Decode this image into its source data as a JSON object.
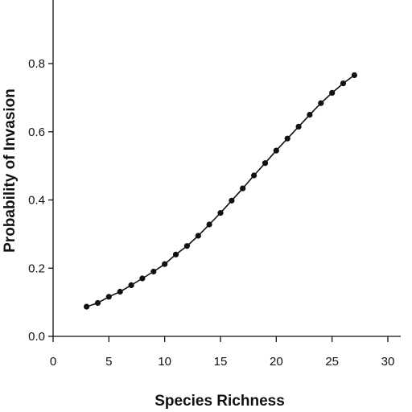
{
  "chart_data": {
    "type": "line",
    "title": "",
    "xlabel": "Species Richness",
    "ylabel": "Probability of Invasion",
    "xlim": [
      0,
      30
    ],
    "ylim": [
      0,
      0.8
    ],
    "xticks": [
      0,
      5,
      10,
      15,
      20,
      25,
      30
    ],
    "yticks": [
      0.0,
      0.2,
      0.4,
      0.6,
      0.8
    ],
    "xtick_labels": [
      "0",
      "5",
      "10",
      "15",
      "20",
      "25",
      "30"
    ],
    "ytick_labels": [
      "0.0",
      "0.2",
      "0.4",
      "0.6",
      "0.8"
    ],
    "grid": false,
    "legend": "none",
    "series": [
      {
        "color": "#111111",
        "x": [
          3,
          4,
          5,
          6,
          7,
          8,
          9,
          10,
          11,
          12,
          13,
          14,
          15,
          16,
          17,
          18,
          19,
          20,
          21,
          22,
          23,
          24,
          25,
          26,
          27
        ],
        "y": [
          0.087,
          0.098,
          0.116,
          0.131,
          0.15,
          0.17,
          0.19,
          0.212,
          0.24,
          0.265,
          0.295,
          0.328,
          0.362,
          0.398,
          0.434,
          0.472,
          0.508,
          0.545,
          0.58,
          0.615,
          0.65,
          0.684,
          0.714,
          0.742,
          0.766
        ]
      }
    ]
  }
}
